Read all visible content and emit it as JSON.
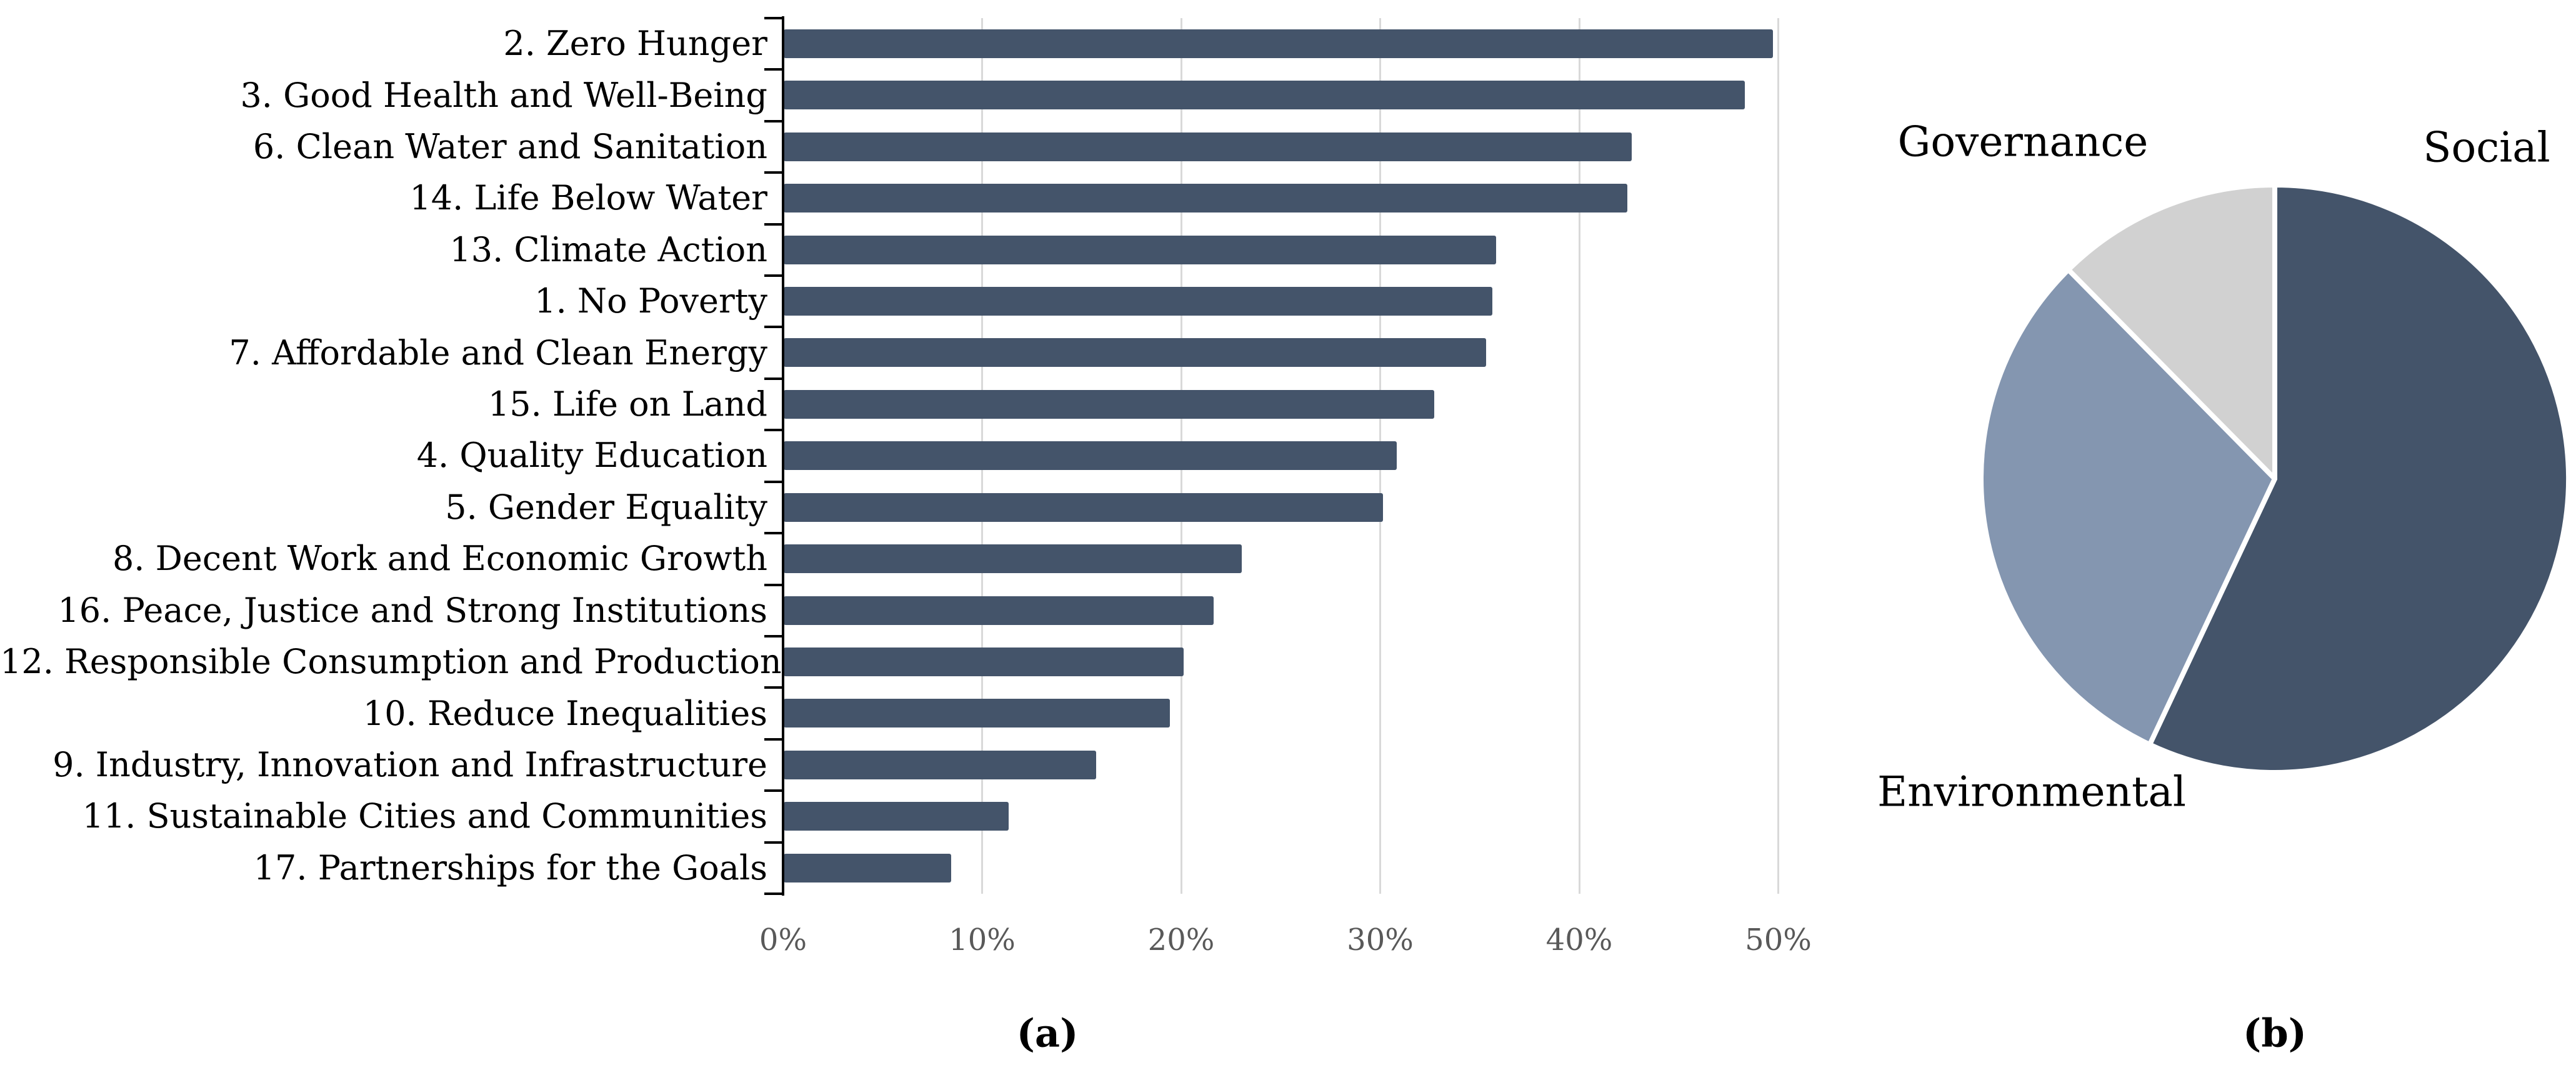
{
  "page": {
    "background": "#ffffff"
  },
  "chart_data": [
    {
      "type": "bar",
      "orientation": "horizontal",
      "caption": "(a)",
      "title": "",
      "xlabel": "",
      "ylabel": "",
      "xlim": [
        0,
        50
      ],
      "grid": true,
      "categories": [
        "2. Zero Hunger",
        "3. Good Health and Well-Being",
        "6. Clean Water and Sanitation",
        "14. Life Below Water",
        "13. Climate Action",
        "1. No Poverty",
        "7. Affordable and Clean Energy",
        "15. Life on Land",
        "4. Quality Education",
        "5. Gender Equality",
        "8. Decent Work and Economic Growth",
        "16. Peace, Justice and Strong Institutions",
        "12. Responsible Consumption and Production",
        "10. Reduce Inequalities",
        "9. Industry, Innovation and Infrastructure",
        "11. Sustainable Cities and Communities",
        "17. Partnerships for the Goals"
      ],
      "values": [
        49.7,
        48.3,
        42.6,
        42.4,
        35.8,
        35.6,
        35.3,
        32.7,
        30.8,
        30.1,
        23.0,
        21.6,
        20.1,
        19.4,
        15.7,
        11.3,
        8.4
      ],
      "value_unit": "percent",
      "x_ticks": [
        {
          "label": "0%",
          "value": 0
        },
        {
          "label": "10%",
          "value": 10
        },
        {
          "label": "20%",
          "value": 20
        },
        {
          "label": "30%",
          "value": 30
        },
        {
          "label": "40%",
          "value": 40
        },
        {
          "label": "50%",
          "value": 50
        }
      ],
      "colors": {
        "bar": "#44546A",
        "gridline": "#D9D9D9",
        "axis": "#000000",
        "tick_label": "#595959",
        "category_label": "#000000"
      }
    },
    {
      "type": "pie",
      "caption": "(b)",
      "start_angle_deg": 0,
      "direction": "clockwise",
      "slices": [
        {
          "label": "Social",
          "percent": 57.0,
          "color": "#44546A"
        },
        {
          "label": "Environmental",
          "percent": 30.6,
          "color": "#8496B0"
        },
        {
          "label": "Governance",
          "percent": 12.4,
          "color": "#D1D1D1"
        }
      ],
      "separator_color": "#FFFFFF",
      "legend_position": "labels-outside"
    }
  ]
}
